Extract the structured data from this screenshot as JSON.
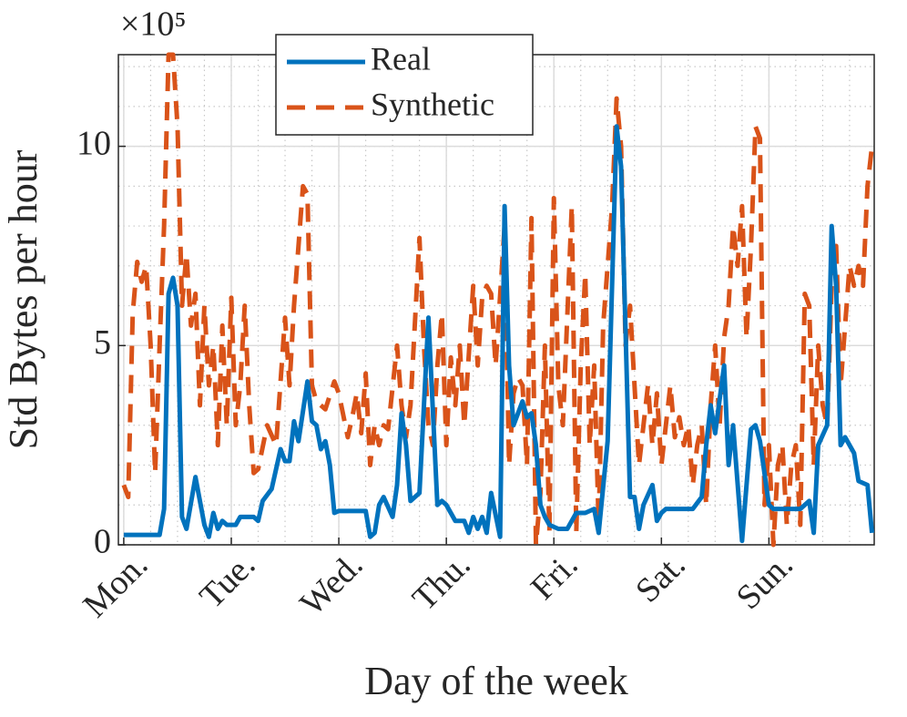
{
  "chart_data": {
    "type": "line",
    "ylabel": "Std Bytes per hour",
    "xlabel": "Day of the week",
    "exponent_label": "×10⁵",
    "xlim": [
      -1.2,
      167.5
    ],
    "ylim": [
      0,
      12.3
    ],
    "xticks": [
      {
        "value": 0,
        "label": "Mon."
      },
      {
        "value": 24,
        "label": "Tue."
      },
      {
        "value": 48,
        "label": "Wed."
      },
      {
        "value": 72,
        "label": "Thu."
      },
      {
        "value": 96,
        "label": "Fri."
      },
      {
        "value": 120,
        "label": "Sat."
      },
      {
        "value": 144,
        "label": "Sun."
      }
    ],
    "yticks": [
      0,
      5,
      10
    ],
    "grid": true,
    "minor_grid": true,
    "legend": "upper left",
    "series": [
      {
        "name": "Real",
        "color": "#0072BD",
        "style": "solid",
        "x": [
          0,
          8,
          9,
          10,
          11,
          12,
          13,
          14,
          16,
          18,
          19,
          20,
          21,
          22,
          23,
          25,
          26,
          29,
          30,
          31,
          33,
          35,
          36,
          37,
          38,
          39,
          41,
          42,
          43,
          44,
          45,
          46,
          47,
          48,
          54,
          55,
          56,
          57,
          58,
          60,
          61,
          62,
          63,
          64,
          66,
          68,
          70,
          71,
          72,
          74,
          76,
          77,
          78,
          79,
          80,
          81,
          82,
          84,
          85,
          86,
          87,
          89,
          90,
          91,
          92,
          93,
          94,
          95,
          97,
          99,
          101,
          103,
          105,
          106,
          108,
          110,
          111,
          113,
          114,
          115,
          116,
          118,
          119,
          120,
          121,
          127,
          129,
          130,
          131,
          132,
          134,
          135,
          136,
          138,
          139,
          140,
          141,
          142,
          144,
          145,
          151,
          153,
          154,
          155,
          157,
          158,
          159,
          160,
          161,
          163,
          164,
          166,
          167
        ],
        "values": [
          0.25,
          0.25,
          0.9,
          6.3,
          6.7,
          6.0,
          0.7,
          0.4,
          1.7,
          0.5,
          0.2,
          0.8,
          0.4,
          0.6,
          0.5,
          0.5,
          0.7,
          0.7,
          0.6,
          1.1,
          1.4,
          2.4,
          2.1,
          2.1,
          3.1,
          2.6,
          4.1,
          3.1,
          3.0,
          2.4,
          2.6,
          2.0,
          0.8,
          0.85,
          0.85,
          0.2,
          0.3,
          1.0,
          1.2,
          0.7,
          1.5,
          3.3,
          2.5,
          1.1,
          1.3,
          5.7,
          1.0,
          1.1,
          1.0,
          0.6,
          0.6,
          0.3,
          0.7,
          0.4,
          0.7,
          0.3,
          1.3,
          0.2,
          8.5,
          4.5,
          3.0,
          3.6,
          3.2,
          3.3,
          2.5,
          1.0,
          0.7,
          0.5,
          0.4,
          0.4,
          0.8,
          0.8,
          0.9,
          0.3,
          2.6,
          10.5,
          9.5,
          1.2,
          1.2,
          0.4,
          1.0,
          1.5,
          0.6,
          0.8,
          0.9,
          0.9,
          1.2,
          2.5,
          3.5,
          2.8,
          4.5,
          2.0,
          3.0,
          0.1,
          1.5,
          2.9,
          3.0,
          2.6,
          1.0,
          0.9,
          0.9,
          1.1,
          0.3,
          2.5,
          3.0,
          8.0,
          6.5,
          2.5,
          2.7,
          2.3,
          1.6,
          1.5,
          0.3
        ]
      },
      {
        "name": "Synthetic",
        "color": "#D95319",
        "style": "dashed",
        "x": [
          0,
          1,
          2,
          3,
          4,
          5,
          6,
          7,
          8,
          9,
          10,
          11,
          12,
          13,
          14,
          15,
          16,
          17,
          18,
          19,
          20,
          21,
          22,
          23,
          24,
          25,
          26,
          27,
          28,
          29,
          30,
          32,
          34,
          36,
          37,
          38,
          40,
          41,
          42,
          43,
          45,
          47,
          48,
          50,
          51,
          52,
          53,
          54,
          55,
          56,
          57,
          58,
          59,
          61,
          62,
          63,
          64,
          66,
          67,
          68,
          69,
          70,
          71,
          72,
          73,
          74,
          75,
          76,
          78,
          79,
          80,
          81,
          82,
          83,
          85,
          86,
          87,
          88,
          89,
          90,
          91,
          92,
          93,
          94,
          95,
          96,
          97,
          98,
          100,
          101,
          102,
          103,
          104,
          105,
          106,
          107,
          108,
          109,
          110,
          111,
          112,
          113,
          114,
          115,
          116,
          117,
          118,
          119,
          120,
          121,
          122,
          123,
          124,
          125,
          126,
          127,
          128,
          129,
          130,
          131,
          132,
          133,
          134,
          135,
          136,
          137,
          138,
          139,
          140,
          141,
          142,
          143,
          144,
          145,
          146,
          147,
          148,
          149,
          150,
          151,
          152,
          153,
          154,
          155,
          156,
          157,
          158,
          159,
          160,
          161,
          162,
          163,
          164,
          165,
          166,
          167
        ],
        "values": [
          1.5,
          1.2,
          5.8,
          7.1,
          6.6,
          7.0,
          5.0,
          1.8,
          5.0,
          8.0,
          12.3,
          12.3,
          10.5,
          6.0,
          7.3,
          5.5,
          6.3,
          3.5,
          6.0,
          4.0,
          5.0,
          2.5,
          5.5,
          3.0,
          6.2,
          3.0,
          4.0,
          6.0,
          3.5,
          1.8,
          1.9,
          3.0,
          2.5,
          5.7,
          4.0,
          6.0,
          9.0,
          8.8,
          4.0,
          3.6,
          3.4,
          4.1,
          3.8,
          2.7,
          3.2,
          3.8,
          2.8,
          4.3,
          2.0,
          3.0,
          2.5,
          3.0,
          2.9,
          5.0,
          3.5,
          2.7,
          3.5,
          7.7,
          5.0,
          3.0,
          2.5,
          4.5,
          5.8,
          2.5,
          4.7,
          3.5,
          5.0,
          3.0,
          6.5,
          4.5,
          6.2,
          6.5,
          6.3,
          4.5,
          8.0,
          2.0,
          3.8,
          4.2,
          4.0,
          2.0,
          8.2,
          0.0,
          1.3,
          5.0,
          0.3,
          8.7,
          4.0,
          3.0,
          8.5,
          0.3,
          4.5,
          6.8,
          2.5,
          4.5,
          0.5,
          5.5,
          7.0,
          8.5,
          11.2,
          10.0,
          5.0,
          6.0,
          4.0,
          2.0,
          3.0,
          4.0,
          2.5,
          3.8,
          2.0,
          3.0,
          4.0,
          2.7,
          3.2,
          2.5,
          3.0,
          1.5,
          2.5,
          3.0,
          1.0,
          3.5,
          5.0,
          3.0,
          5.2,
          6.0,
          8.0,
          7.0,
          8.5,
          5.2,
          7.5,
          10.5,
          10.2,
          1.0,
          2.5,
          0.0,
          2.0,
          2.5,
          0.5,
          2.0,
          2.5,
          0.5,
          6.3,
          6.0,
          2.0,
          5.0,
          3.5,
          3.0,
          6.5,
          7.5,
          4.0,
          5.5,
          7.0,
          6.5,
          7.0,
          6.5,
          9.0,
          10.0
        ]
      }
    ]
  }
}
